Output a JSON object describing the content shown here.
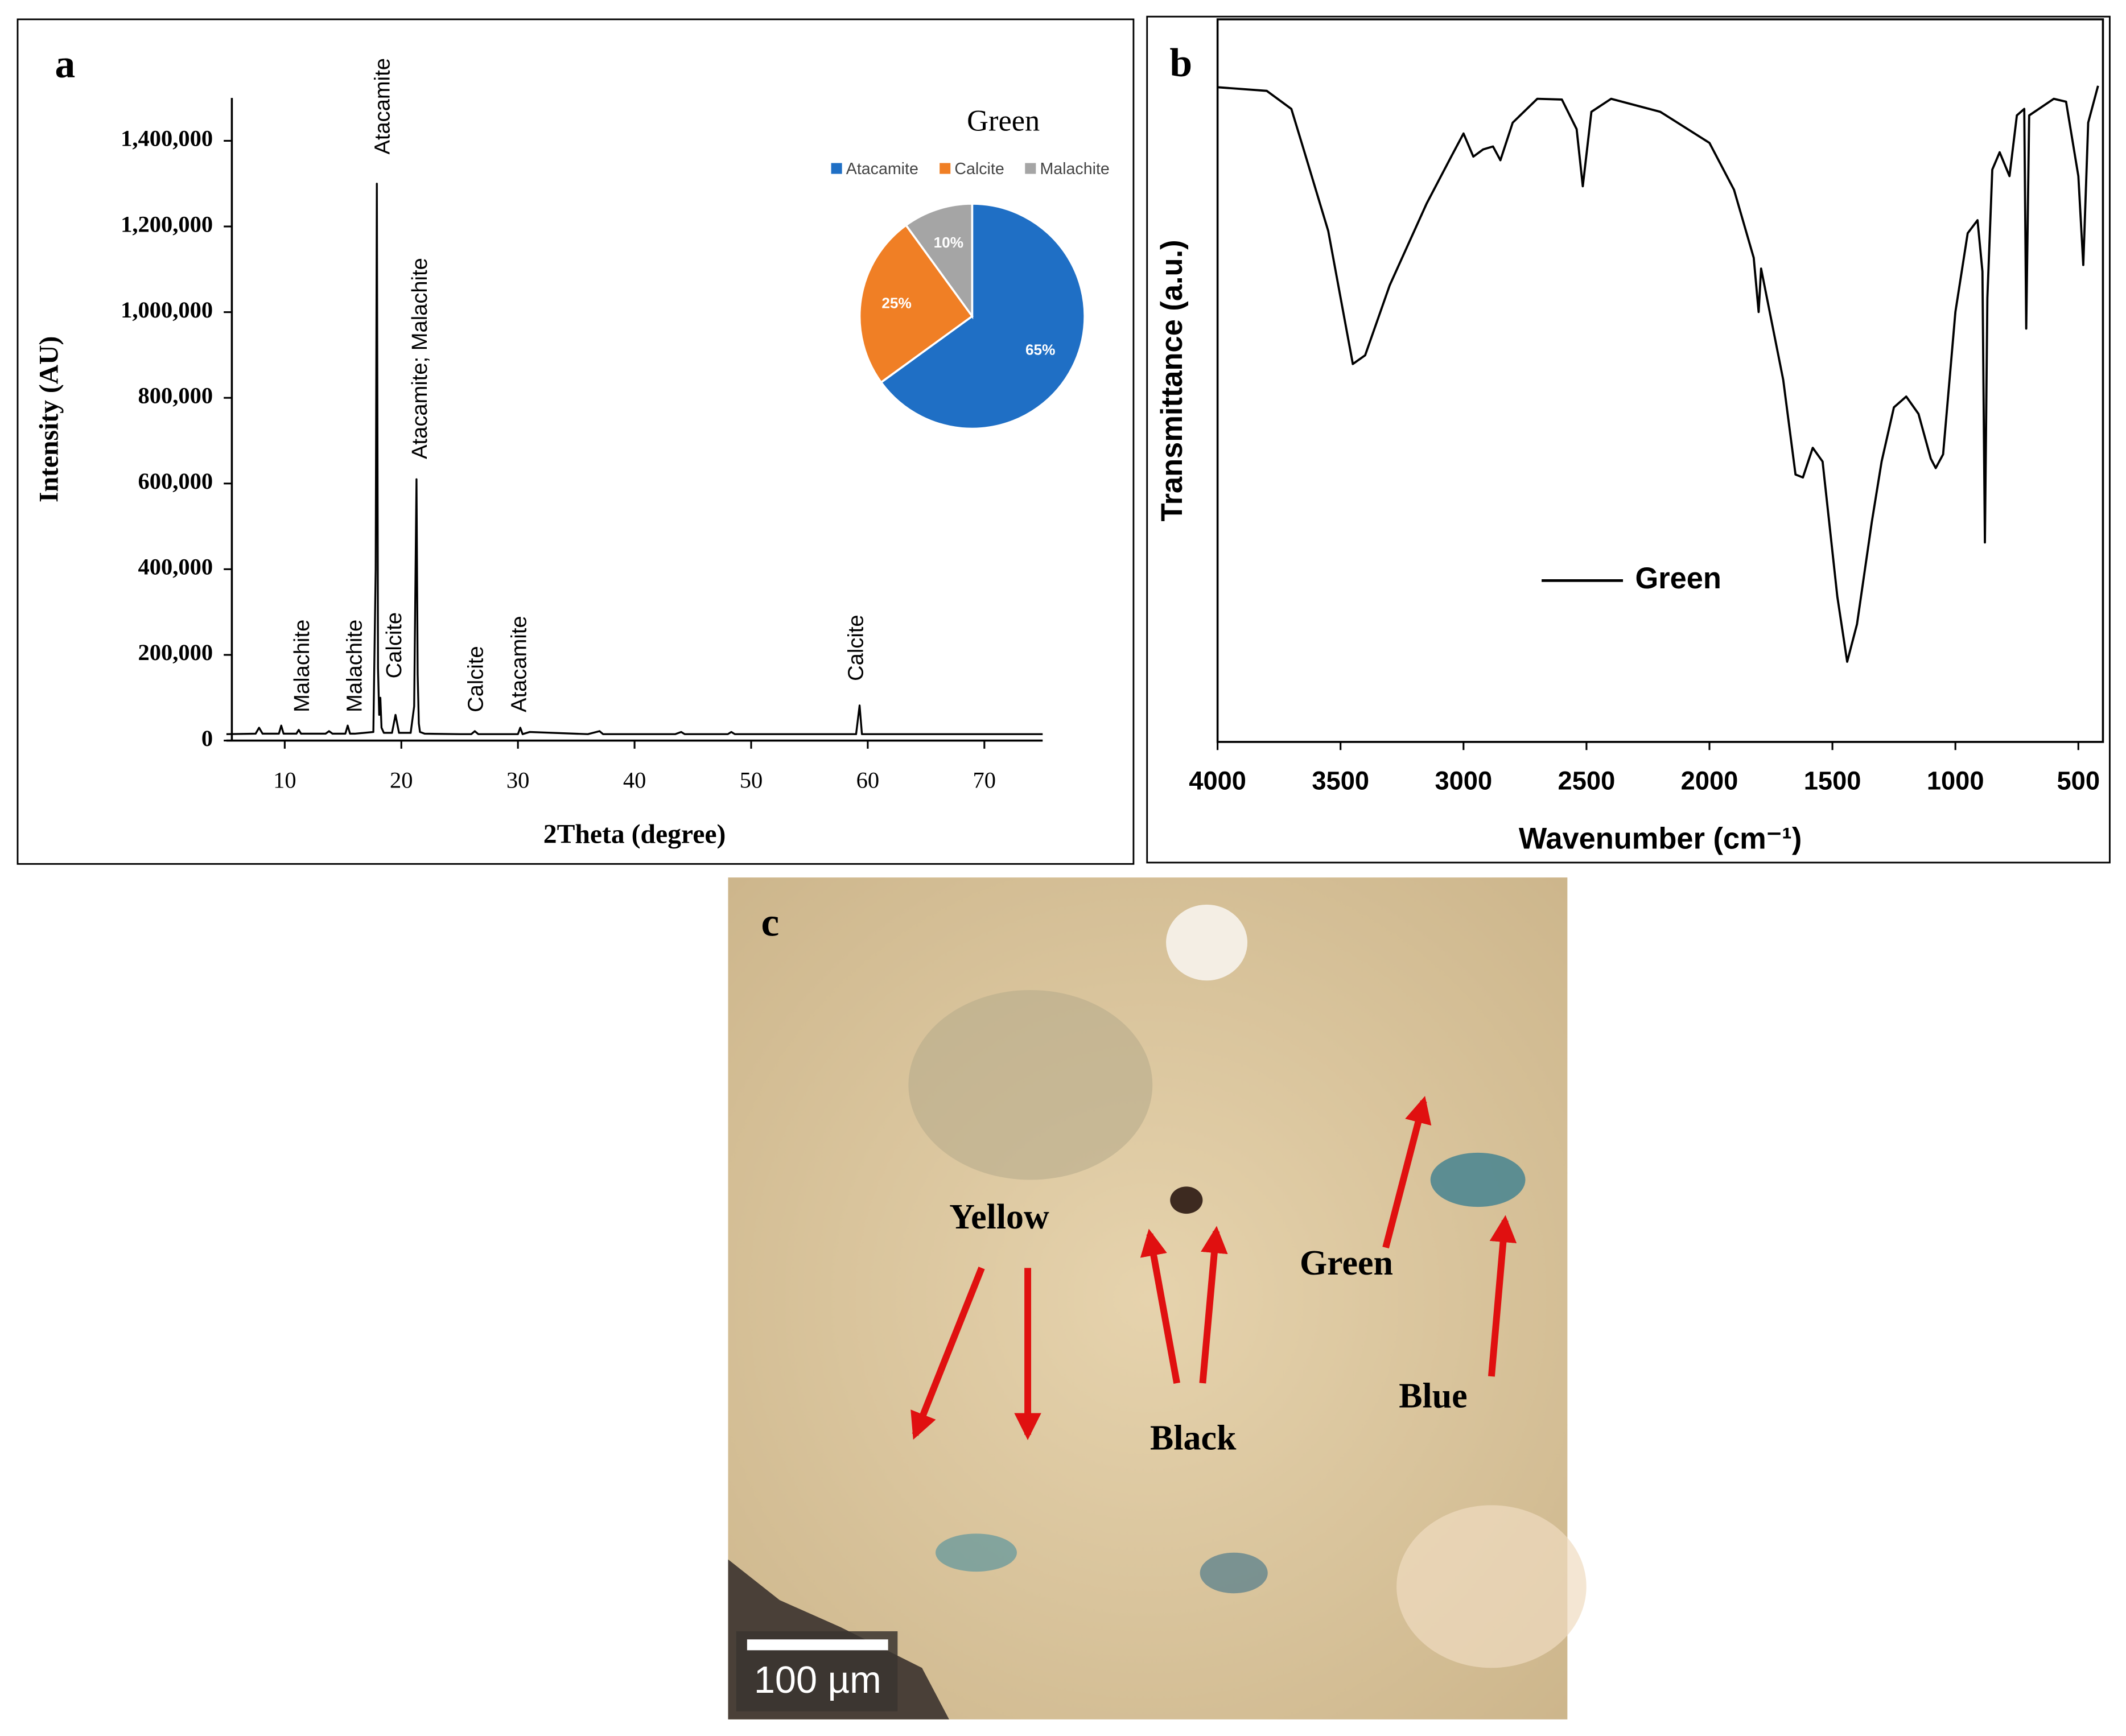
{
  "chart_data": [
    {
      "type": "line",
      "panel_label": "a",
      "xlabel": "2Theta (degree)",
      "ylabel": "Intensity (AU)",
      "color": "#000000",
      "x": [
        5,
        7.5,
        7.8,
        8.1,
        9.5,
        9.7,
        9.9,
        11,
        11.2,
        11.4,
        13.5,
        13.8,
        14.1,
        15.2,
        15.4,
        15.6,
        16,
        17.6,
        17.8,
        17.9,
        18.0,
        18.1,
        18.2,
        18.3,
        18.5,
        19.2,
        19.5,
        19.8,
        20.8,
        21.1,
        21.3,
        21.4,
        21.5,
        21.6,
        22,
        25,
        26,
        26.3,
        26.6,
        30,
        30.2,
        30.4,
        31,
        36,
        37,
        37.3,
        40,
        43.5,
        44,
        44.3,
        48,
        48.3,
        48.6,
        55,
        59,
        59.3,
        59.5,
        65,
        75
      ],
      "values": [
        15000,
        16000,
        30000,
        16000,
        16000,
        35000,
        16000,
        16000,
        25000,
        16000,
        16000,
        22000,
        16000,
        16000,
        35000,
        16000,
        16000,
        20000,
        400000,
        1300000,
        170000,
        60000,
        100000,
        30000,
        18000,
        18000,
        60000,
        18000,
        18000,
        80000,
        610000,
        155000,
        40000,
        20000,
        16000,
        15000,
        15000,
        22000,
        15000,
        15000,
        30000,
        15000,
        20000,
        15000,
        22000,
        15000,
        15000,
        15000,
        20000,
        15000,
        15000,
        20000,
        15000,
        15000,
        15000,
        82000,
        15000,
        15000,
        15000
      ],
      "xlim": [
        5,
        75
      ],
      "ylim": [
        0,
        1500000
      ],
      "xticks": [
        10,
        20,
        30,
        40,
        50,
        60,
        70
      ],
      "yticks": [
        0,
        {
          "value": 200000,
          "label": "200,000"
        },
        {
          "value": 400000,
          "label": "400,000"
        },
        {
          "value": 600000,
          "label": "600,000"
        },
        {
          "value": 800000,
          "label": "800,000"
        },
        {
          "value": 1000000,
          "label": "1,000,000"
        },
        {
          "value": 1200000,
          "label": "1,200,000"
        },
        {
          "value": 1400000,
          "label": "1,400,000"
        }
      ],
      "annotations": [
        {
          "text": "Malachite",
          "x": 11.6,
          "y": 66000
        },
        {
          "text": "Malachite",
          "x": 16.1,
          "y": 66000
        },
        {
          "text": "Atacamite",
          "x": 18.5,
          "y": 1368000
        },
        {
          "text": "Calcite",
          "x": 19.5,
          "y": 145000
        },
        {
          "text": "Atacamite; Malachite",
          "x": 21.7,
          "y": 657000
        },
        {
          "text": "Calcite",
          "x": 26.5,
          "y": 66000
        },
        {
          "text": "Atacamite",
          "x": 30.2,
          "y": 66000
        },
        {
          "text": "Calcite",
          "x": 59.1,
          "y": 139000
        }
      ]
    },
    {
      "type": "pie",
      "title": "Green",
      "categories": [
        "Atacamite",
        "Calcite",
        "Malachite"
      ],
      "values": [
        65,
        25,
        10
      ],
      "value_labels": [
        "65%",
        "25%",
        "10%"
      ],
      "colors": [
        "#1f6fc5",
        "#f07f25",
        "#a5a5a5"
      ],
      "legend": "top"
    },
    {
      "type": "line",
      "panel_label": "b",
      "xlabel": "Wavenumber (cm⁻¹)",
      "ylabel": "Transmittance (a.u.)",
      "xlim": [
        4000,
        400
      ],
      "ylim": [
        0,
        100
      ],
      "xticks": [
        4000,
        3500,
        3000,
        2500,
        2000,
        1500,
        1000,
        500
      ],
      "series": [
        {
          "name": "Green",
          "color": "#000000",
          "x": [
            4000,
            3800,
            3700,
            3650,
            3550,
            3450,
            3400,
            3300,
            3150,
            3050,
            3000,
            2960,
            2920,
            2880,
            2850,
            2800,
            2700,
            2600,
            2540,
            2515,
            2480,
            2400,
            2200,
            2000,
            1900,
            1820,
            1800,
            1790,
            1700,
            1650,
            1620,
            1580,
            1540,
            1480,
            1440,
            1400,
            1340,
            1300,
            1250,
            1200,
            1150,
            1100,
            1080,
            1050,
            1000,
            950,
            910,
            890,
            880,
            870,
            850,
            820,
            780,
            750,
            720,
            712,
            700,
            600,
            550,
            500,
            480,
            460,
            420
          ],
          "values": [
            90.6,
            90.1,
            87.6,
            82,
            70.7,
            52.3,
            53.5,
            63.2,
            74.5,
            81,
            84.2,
            81,
            82,
            82.4,
            80.5,
            85.7,
            89,
            88.9,
            84.8,
            76.9,
            87.2,
            89,
            87.2,
            82.9,
            76.4,
            67,
            59.5,
            65.5,
            50.1,
            37,
            36.6,
            40.7,
            38.8,
            20.1,
            11.1,
            16.3,
            30.4,
            38.8,
            46.3,
            47.8,
            45.4,
            39.2,
            37.9,
            39.8,
            59.5,
            70.4,
            72.2,
            65.1,
            27.6,
            61.4,
            79.2,
            81.6,
            78.3,
            86.7,
            87.6,
            57.2,
            86.7,
            89,
            88.6,
            78.3,
            66,
            85.7,
            90.8
          ]
        }
      ]
    },
    {
      "type": "image",
      "panel_label": "c",
      "labels": [
        "Yellow",
        "Black",
        "Green",
        "Blue"
      ],
      "scale_bar": "100 µm"
    }
  ]
}
